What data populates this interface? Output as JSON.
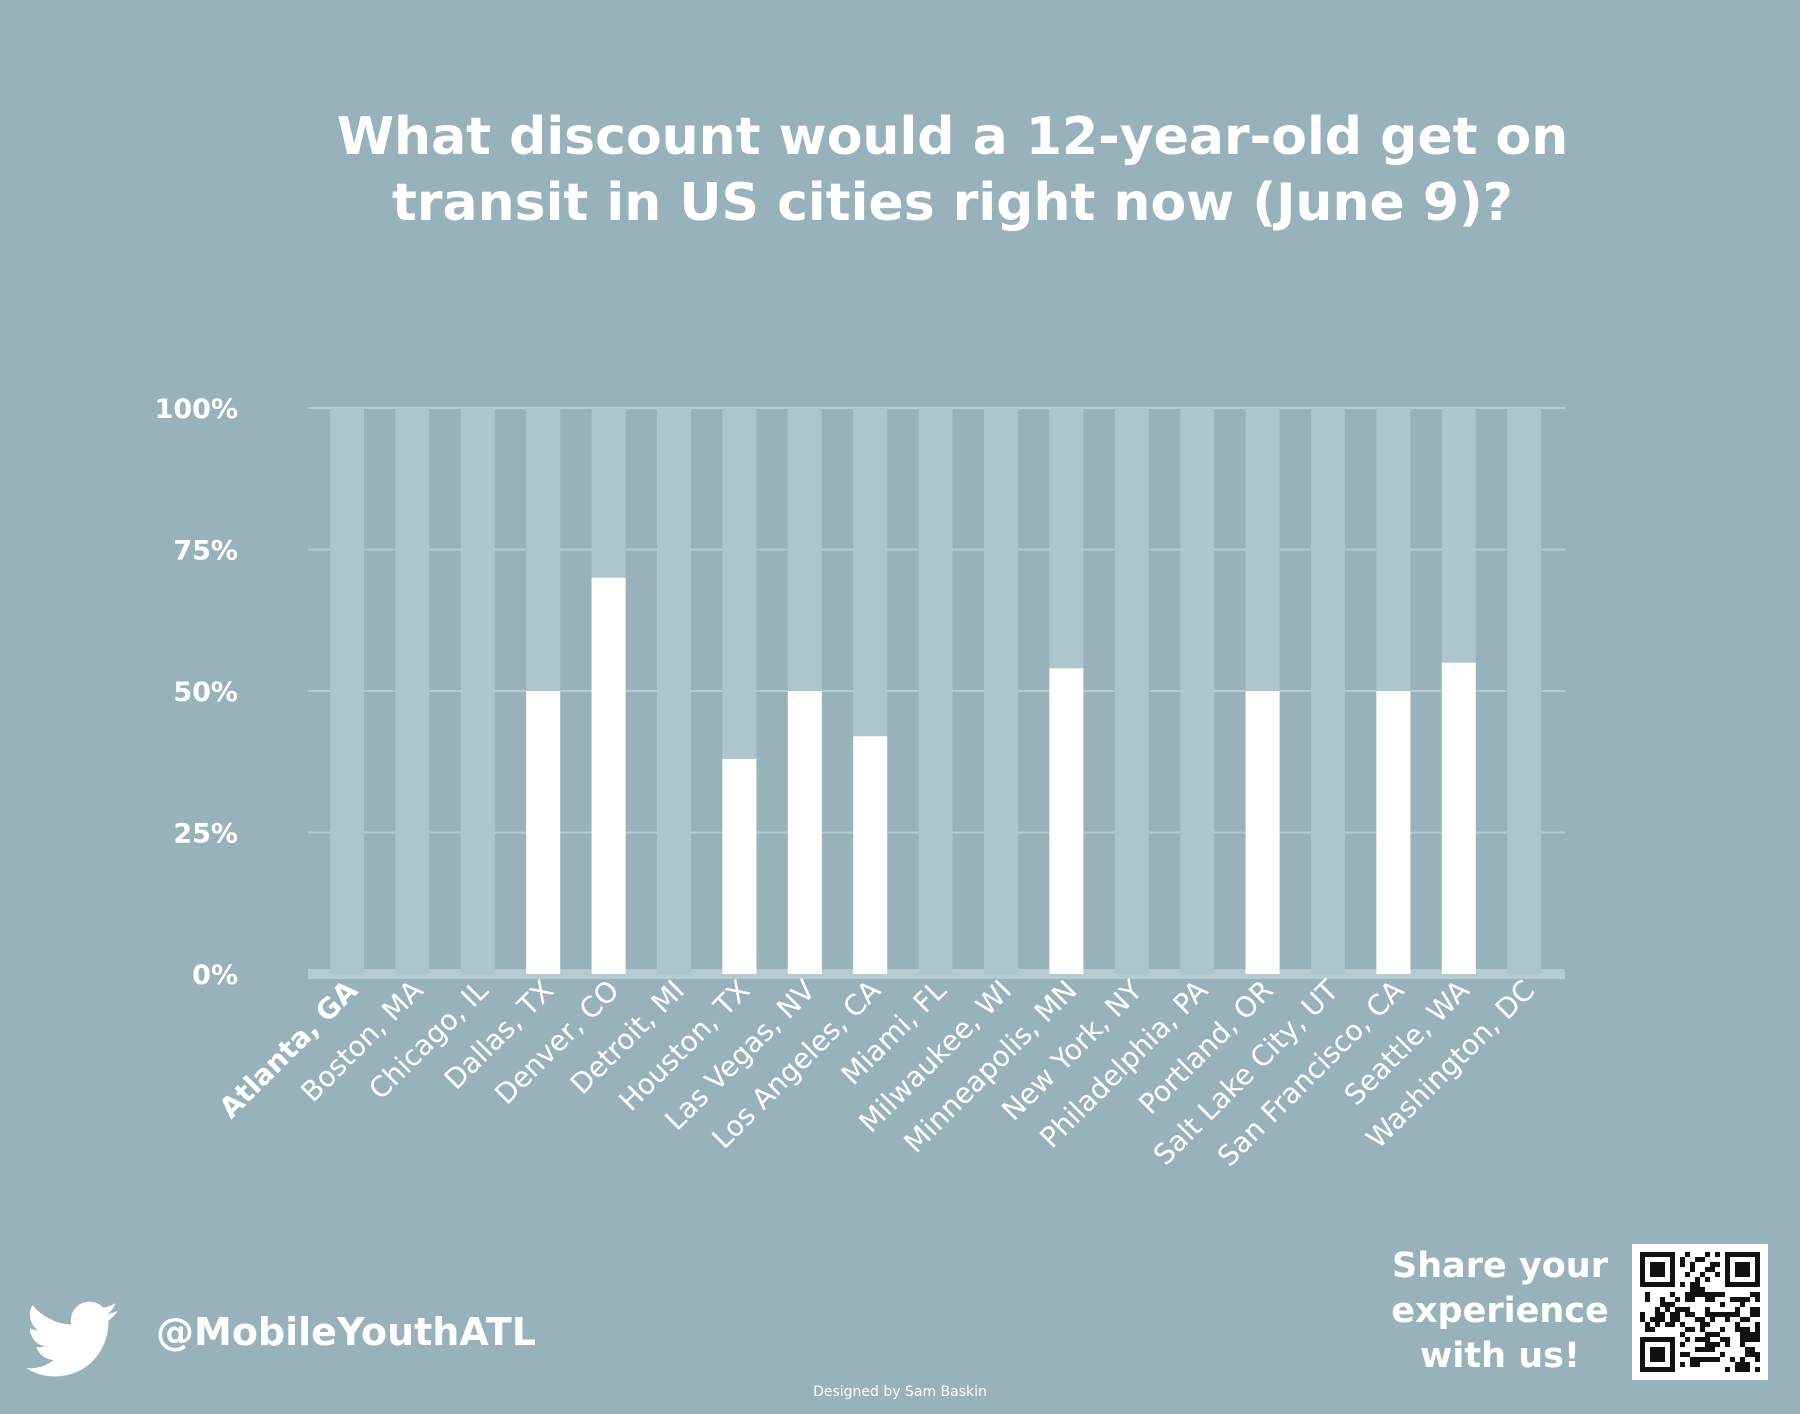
{
  "colors": {
    "background": "#98b2bb",
    "bar_value": "#ffffff",
    "bar_track": "#adc6cd",
    "grid": "#b4cbd2",
    "text": "#ffffff"
  },
  "chart_data": {
    "type": "bar",
    "title": "What discount would a 12-year-old get on transit in US cities right now (June 9)?",
    "xlabel": "",
    "ylabel": "",
    "ylim": [
      0,
      100
    ],
    "yticks": [
      "0%",
      "25%",
      "50%",
      "75%",
      "100%"
    ],
    "grid": true,
    "highlight_category": "Atlanta, GA",
    "categories": [
      "Atlanta, GA",
      "Boston, MA",
      "Chicago, IL",
      "Dallas, TX",
      "Denver, CO",
      "Detroit, MI",
      "Houston, TX",
      "Las Vegas, NV",
      "Los Angeles, CA",
      "Miami, FL",
      "Milwaukee, WI",
      "Minneapolis, MN",
      "New York, NY",
      "Philadelphia, PA",
      "Portland, OR",
      "Salt Lake City, UT",
      "San Francisco, CA",
      "Seattle, WA",
      "Washington, DC"
    ],
    "values": [
      0,
      0,
      0,
      50,
      70,
      0,
      38,
      50,
      42,
      0,
      0,
      54,
      0,
      0,
      50,
      0,
      50,
      55,
      0
    ]
  },
  "footer": {
    "twitter_icon": "twitter-bird-icon",
    "handle": "@MobileYouthATL",
    "share_text": "Share your\nexperience\nwith us!",
    "qr_icon": "qr-code-icon",
    "credit": "Designed by Sam Baskin"
  }
}
